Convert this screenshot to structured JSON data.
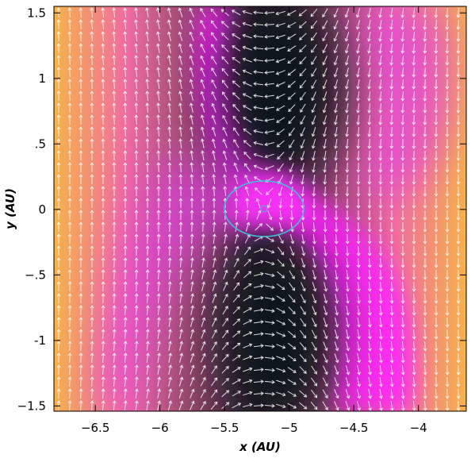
{
  "chart_data": {
    "type": "vector-field",
    "xlabel": "x (AU)",
    "ylabel": "y (AU)",
    "xlim": [
      -6.82,
      -3.63
    ],
    "ylim": [
      -1.54,
      1.55
    ],
    "xticks": [
      {
        "value": -6.5,
        "label": "−6.5"
      },
      {
        "value": -6,
        "label": "−6"
      },
      {
        "value": -5.5,
        "label": "−5.5"
      },
      {
        "value": -5,
        "label": "−5"
      },
      {
        "value": -4.5,
        "label": "−4.5"
      },
      {
        "value": -4,
        "label": "−4"
      }
    ],
    "yticks": [
      {
        "value": 1.5,
        "label": "1.5"
      },
      1,
      {
        "value": 0.5,
        "label": ".5"
      },
      0,
      {
        "value": -0.5,
        "label": "−.5"
      },
      -1,
      {
        "value": -1.5,
        "label": "−1.5"
      }
    ]
  }
}
